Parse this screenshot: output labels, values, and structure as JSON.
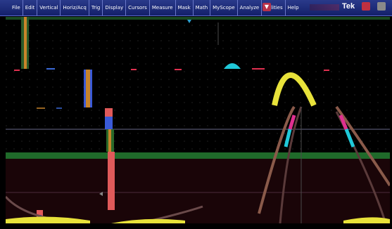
{
  "menu": {
    "items": [
      "File",
      "Edit",
      "Vertical",
      "Horiz/Acq",
      "Trig",
      "Display",
      "Cursors",
      "Measure",
      "Mask",
      "Math",
      "MyScope",
      "Analyze",
      "Utilities",
      "Help"
    ]
  },
  "brand": "Tek",
  "icons": {
    "help_dropdown": "caret-down-icon",
    "minimize": "minimize-icon",
    "close": "close-icon"
  },
  "colors": {
    "menubar": "#1e2c7a",
    "trace_yellow": "#e8e23a",
    "trace_cyan": "#20c8d8",
    "trace_magenta": "#e03090",
    "trace_green": "#1f6a2a",
    "trace_red": "#e05a5a",
    "trace_orange": "#d8862a",
    "trace_blue": "#3a6ad8",
    "grid": "#6a6a6a"
  }
}
